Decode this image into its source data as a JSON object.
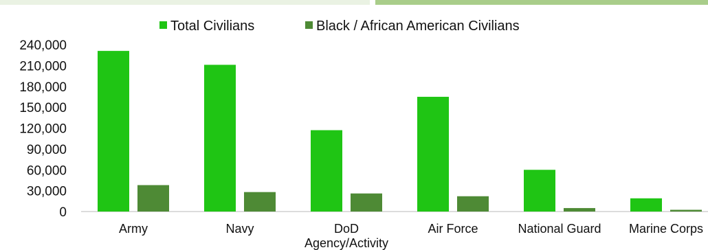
{
  "colors": {
    "total": "#1fc514",
    "black": "#4e8a35",
    "axis": "#d0d0d0",
    "top_strip_left": "#eaf2e3",
    "top_strip_right": "#a9cd8a"
  },
  "chart_data": {
    "type": "bar",
    "title": "",
    "xlabel": "",
    "ylabel": "",
    "categories": [
      "Army",
      "Navy",
      "DoD Agency/Activity",
      "Air Force",
      "National Guard",
      "Marine Corps"
    ],
    "category_lines": [
      [
        "Army"
      ],
      [
        "Navy"
      ],
      [
        "DoD",
        "Agency/Activity"
      ],
      [
        "Air Force"
      ],
      [
        "National Guard"
      ],
      [
        "Marine Corps"
      ]
    ],
    "series": [
      {
        "name": "Total Civilians",
        "values": [
          231000,
          211000,
          117000,
          165000,
          60000,
          19000
        ]
      },
      {
        "name": "Black / African American Civilians",
        "values": [
          38000,
          28000,
          26000,
          22000,
          5000,
          2500
        ]
      }
    ],
    "ylim": [
      0,
      240000
    ],
    "yticks": [
      "0",
      "30,000",
      "60,000",
      "90,000",
      "120,000",
      "150,000",
      "180,000",
      "210,000",
      "240,000"
    ],
    "grid": false,
    "legend_position": "top"
  }
}
